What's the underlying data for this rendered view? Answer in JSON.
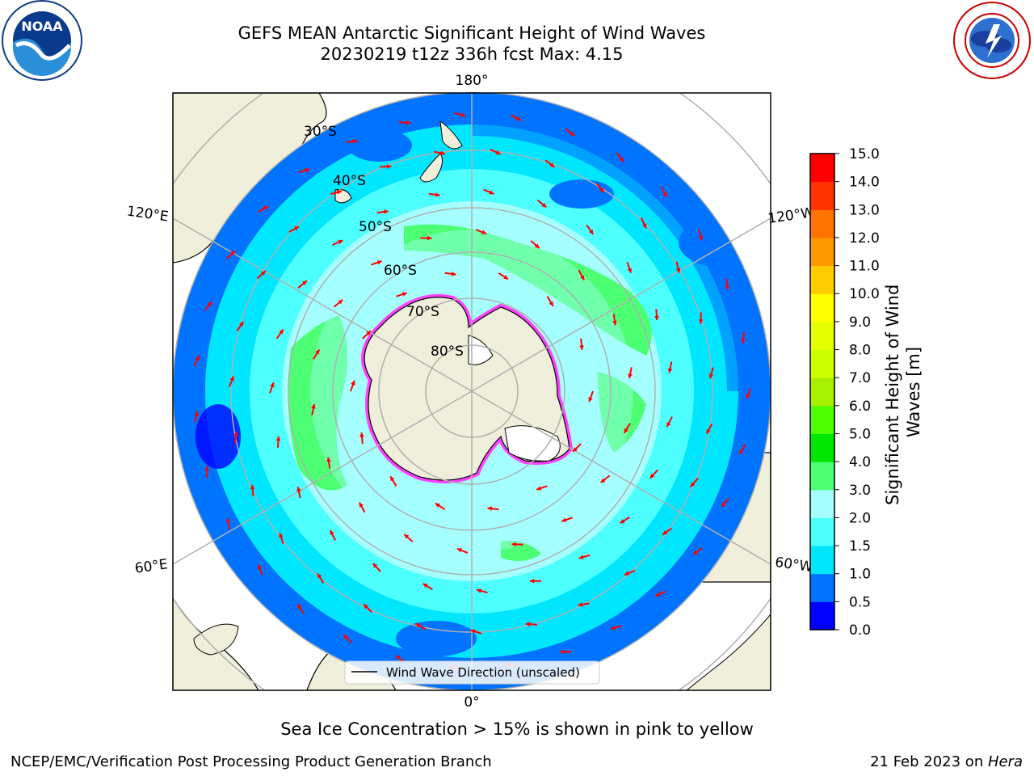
{
  "header": {
    "title_line1": "GEFS MEAN Antarctic Significant Height of Wind Waves",
    "title_line2": "20230219 t12z 336h fcst   Max: 4.15"
  },
  "logos": {
    "left": "noaa-logo",
    "right": "national-weather-service-logo"
  },
  "map": {
    "projection": "south-polar-stereographic",
    "longitude_labels": [
      "180°",
      "120°E",
      "120°W",
      "60°E",
      "60°W",
      "0°"
    ],
    "latitude_labels": [
      "30°S",
      "40°S",
      "50°S",
      "60°S",
      "70°S",
      "80°S"
    ],
    "legend_label": "Wind Wave Direction (unscaled)",
    "arrow_color": "#ff0000",
    "land_color": "#efefdb",
    "sea_ice_colors": [
      "#ff40ff",
      "#ffff00",
      "#ffffff"
    ]
  },
  "colorbar": {
    "label": "Significant Height of Wind Waves [m]",
    "ticks": [
      "0.0",
      "0.5",
      "1.0",
      "1.5",
      "2.0",
      "3.0",
      "4.0",
      "5.0",
      "6.0",
      "7.0",
      "8.0",
      "9.0",
      "10.0",
      "11.0",
      "12.0",
      "13.0",
      "14.0",
      "15.0"
    ],
    "colors": [
      "#0000ff",
      "#0073ff",
      "#00e6ff",
      "#4dffff",
      "#a6ffff",
      "#4dff73",
      "#00e600",
      "#4dff00",
      "#a6f000",
      "#ccff00",
      "#e6ff00",
      "#ffff00",
      "#ffcc00",
      "#ff9900",
      "#ff7300",
      "#ff3300",
      "#ff0000"
    ]
  },
  "footer": {
    "ice_note": "Sea Ice Concentration > 15% is shown in pink to yellow",
    "credit_left": "NCEP/EMC/Verification Post Processing Product Generation Branch",
    "credit_date": "21 Feb 2023 on ",
    "credit_host": "Hera"
  }
}
